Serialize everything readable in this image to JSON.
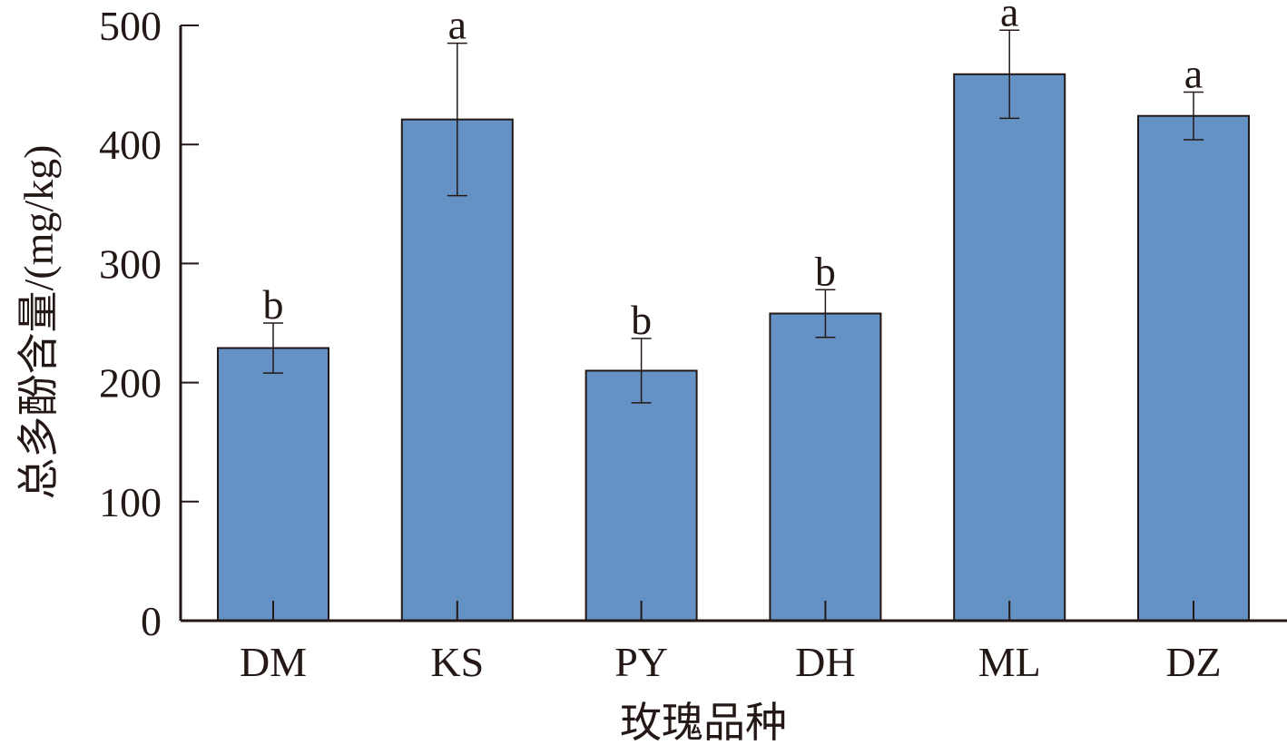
{
  "chart_data": {
    "type": "bar",
    "title": "",
    "xlabel": "玫瑰品种",
    "ylabel": "总多酚含量/(mg/kg)",
    "categories": [
      "DM",
      "KS",
      "PY",
      "DH",
      "ML",
      "DZ"
    ],
    "values": [
      229,
      421,
      210,
      258,
      459,
      424
    ],
    "errors": [
      21,
      64,
      27,
      20,
      37,
      20
    ],
    "significance_letters": [
      "b",
      "a",
      "b",
      "b",
      "a",
      "a"
    ],
    "ylim": [
      0,
      500
    ],
    "yticks": [
      0,
      100,
      200,
      300,
      400,
      500
    ],
    "grid": false,
    "bar_color": "#6592C4",
    "edge_color": "#231815"
  }
}
